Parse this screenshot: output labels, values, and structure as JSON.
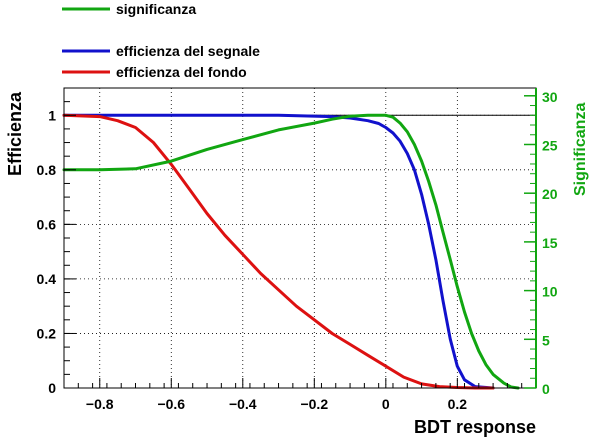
{
  "chart_data": {
    "type": "line",
    "xlabel": "BDT response",
    "ylabel": "Efficienza",
    "y2label": "Significanza",
    "xlim": [
      -0.9,
      0.42
    ],
    "ylim": [
      0,
      1.1
    ],
    "y2lim": [
      0,
      30.8
    ],
    "x_ticks": [
      -0.8,
      -0.6,
      -0.4,
      -0.2,
      0,
      0.2
    ],
    "x_tick_labels": [
      "−0.8",
      "−0.6",
      "−0.4",
      "−0.2",
      "0",
      "0.2"
    ],
    "y_ticks": [
      0,
      0.2,
      0.4,
      0.6,
      0.8,
      1
    ],
    "y_tick_labels": [
      "0",
      "0.2",
      "0.4",
      "0.6",
      "0.8",
      "1"
    ],
    "y2_ticks": [
      0,
      5,
      10,
      15,
      20,
      25,
      30
    ],
    "y2_tick_labels": [
      "0",
      "5",
      "10",
      "15",
      "20",
      "25",
      "30"
    ],
    "grid": true,
    "reference_line_y": 1,
    "legend": {
      "position": "top-left",
      "entries": [
        "significanza",
        "efficienza del segnale",
        "efficienza del fondo"
      ]
    },
    "colors": {
      "significanza": "#11a611",
      "segnale": "#1111cc",
      "fondo": "#dd1111"
    },
    "series": [
      {
        "name": "efficienza del segnale",
        "axis": "left",
        "x": [
          -0.9,
          -0.6,
          -0.3,
          -0.15,
          -0.1,
          -0.05,
          -0.02,
          0.0,
          0.02,
          0.04,
          0.06,
          0.08,
          0.1,
          0.12,
          0.14,
          0.16,
          0.18,
          0.2,
          0.22,
          0.25,
          0.3
        ],
        "values": [
          1.0,
          1.0,
          1.0,
          0.995,
          0.99,
          0.98,
          0.97,
          0.955,
          0.935,
          0.905,
          0.86,
          0.8,
          0.71,
          0.6,
          0.47,
          0.32,
          0.18,
          0.08,
          0.03,
          0.005,
          0.0
        ]
      },
      {
        "name": "efficienza del fondo",
        "axis": "left",
        "x": [
          -0.9,
          -0.8,
          -0.75,
          -0.7,
          -0.65,
          -0.6,
          -0.55,
          -0.5,
          -0.45,
          -0.4,
          -0.35,
          -0.3,
          -0.25,
          -0.2,
          -0.15,
          -0.1,
          -0.05,
          0.0,
          0.05,
          0.1,
          0.15,
          0.2,
          0.25,
          0.3
        ],
        "values": [
          1.0,
          0.995,
          0.98,
          0.955,
          0.9,
          0.82,
          0.73,
          0.64,
          0.56,
          0.49,
          0.42,
          0.36,
          0.3,
          0.25,
          0.2,
          0.16,
          0.12,
          0.08,
          0.04,
          0.015,
          0.005,
          0.002,
          0.0,
          0.0
        ]
      },
      {
        "name": "significanza",
        "axis": "right",
        "x": [
          -0.9,
          -0.8,
          -0.7,
          -0.6,
          -0.5,
          -0.4,
          -0.3,
          -0.2,
          -0.15,
          -0.1,
          -0.05,
          0.0,
          0.02,
          0.04,
          0.06,
          0.08,
          0.1,
          0.12,
          0.14,
          0.16,
          0.18,
          0.2,
          0.22,
          0.24,
          0.26,
          0.28,
          0.3,
          0.33,
          0.35,
          0.37
        ],
        "values": [
          22.4,
          22.4,
          22.5,
          23.3,
          24.5,
          25.5,
          26.5,
          27.2,
          27.6,
          27.9,
          28.0,
          28.0,
          27.8,
          27.2,
          26.3,
          25.0,
          23.3,
          21.2,
          18.8,
          16.0,
          13.2,
          10.4,
          7.8,
          5.6,
          3.8,
          2.4,
          1.4,
          0.5,
          0.1,
          0.0
        ]
      }
    ]
  }
}
